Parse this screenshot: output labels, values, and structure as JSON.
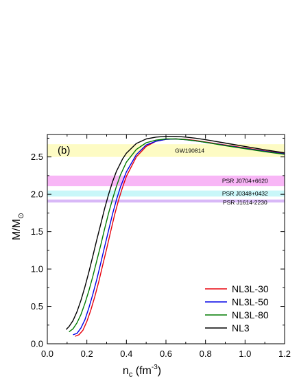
{
  "chart_data": {
    "type": "line",
    "panel_label": "(b)",
    "xlabel": {
      "main": "n",
      "sub": "c",
      "unit_pre": " (fm",
      "sup": "-3",
      "unit_post": ")"
    },
    "ylabel": {
      "main": "M/M",
      "sub": "⊙"
    },
    "xlim": [
      0.0,
      1.2
    ],
    "ylim": [
      0.0,
      2.8
    ],
    "xticks": [
      "0.0",
      "0.2",
      "0.4",
      "0.6",
      "0.8",
      "1.0",
      "1.2"
    ],
    "yticks": [
      "0.0",
      "0.5",
      "1.0",
      "1.5",
      "2.0",
      "2.5"
    ],
    "grid": false,
    "legend_position": "lower-right",
    "bands": [
      {
        "label": "GW190814",
        "ymin": 2.5,
        "ymax": 2.67,
        "color": "#fdfbc4"
      },
      {
        "label": "PSR J0704+6620",
        "ymin": 2.11,
        "ymax": 2.25,
        "color": "#f8b6f6"
      },
      {
        "label": "PSR J0348+0432",
        "ymin": 1.97,
        "ymax": 2.05,
        "color": "#c9f7f9"
      },
      {
        "label": "PSR J1614-2230",
        "ymin": 1.89,
        "ymax": 1.93,
        "color": "#d8b8f7"
      }
    ],
    "series": [
      {
        "name": "NL3L-30",
        "color": "#e8000b",
        "x": [
          0.14,
          0.16,
          0.18,
          0.2,
          0.22,
          0.24,
          0.26,
          0.28,
          0.3,
          0.32,
          0.34,
          0.36,
          0.38,
          0.4,
          0.45,
          0.5,
          0.55,
          0.6,
          0.65,
          0.7,
          0.75,
          0.8,
          0.9,
          1.0,
          1.1,
          1.2
        ],
        "y": [
          0.1,
          0.12,
          0.18,
          0.3,
          0.45,
          0.63,
          0.83,
          1.05,
          1.27,
          1.5,
          1.72,
          1.92,
          2.09,
          2.24,
          2.5,
          2.64,
          2.71,
          2.735,
          2.74,
          2.735,
          2.72,
          2.7,
          2.66,
          2.62,
          2.58,
          2.545
        ]
      },
      {
        "name": "NL3L-50",
        "color": "#0000e6",
        "x": [
          0.13,
          0.15,
          0.17,
          0.19,
          0.21,
          0.23,
          0.25,
          0.27,
          0.29,
          0.31,
          0.33,
          0.35,
          0.37,
          0.4,
          0.45,
          0.5,
          0.55,
          0.6,
          0.65,
          0.7,
          0.75,
          0.8,
          0.9,
          1.0,
          1.1,
          1.2
        ],
        "y": [
          0.12,
          0.14,
          0.21,
          0.32,
          0.48,
          0.66,
          0.86,
          1.08,
          1.3,
          1.52,
          1.74,
          1.93,
          2.1,
          2.3,
          2.53,
          2.66,
          2.71,
          2.735,
          2.74,
          2.73,
          2.715,
          2.695,
          2.655,
          2.615,
          2.575,
          2.54
        ]
      },
      {
        "name": "NL3L-80",
        "color": "#007a00",
        "x": [
          0.11,
          0.13,
          0.15,
          0.17,
          0.19,
          0.21,
          0.23,
          0.25,
          0.27,
          0.29,
          0.31,
          0.33,
          0.35,
          0.37,
          0.4,
          0.45,
          0.5,
          0.55,
          0.6,
          0.65,
          0.7,
          0.75,
          0.8,
          0.9,
          1.0,
          1.1,
          1.2
        ],
        "y": [
          0.16,
          0.2,
          0.28,
          0.39,
          0.54,
          0.71,
          0.9,
          1.11,
          1.32,
          1.54,
          1.75,
          1.94,
          2.11,
          2.26,
          2.43,
          2.6,
          2.69,
          2.725,
          2.74,
          2.74,
          2.73,
          2.715,
          2.695,
          2.65,
          2.61,
          2.57,
          2.535
        ]
      },
      {
        "name": "NL3",
        "color": "#000000",
        "x": [
          0.095,
          0.11,
          0.13,
          0.15,
          0.17,
          0.19,
          0.21,
          0.23,
          0.25,
          0.27,
          0.29,
          0.31,
          0.33,
          0.35,
          0.38,
          0.4,
          0.45,
          0.5,
          0.55,
          0.6,
          0.65,
          0.7,
          0.75,
          0.8,
          0.9,
          1.0,
          1.1,
          1.2
        ],
        "y": [
          0.19,
          0.23,
          0.31,
          0.43,
          0.58,
          0.76,
          0.96,
          1.17,
          1.39,
          1.6,
          1.81,
          2.0,
          2.17,
          2.31,
          2.47,
          2.55,
          2.68,
          2.74,
          2.765,
          2.775,
          2.775,
          2.765,
          2.75,
          2.73,
          2.685,
          2.64,
          2.595,
          2.555
        ]
      }
    ]
  }
}
